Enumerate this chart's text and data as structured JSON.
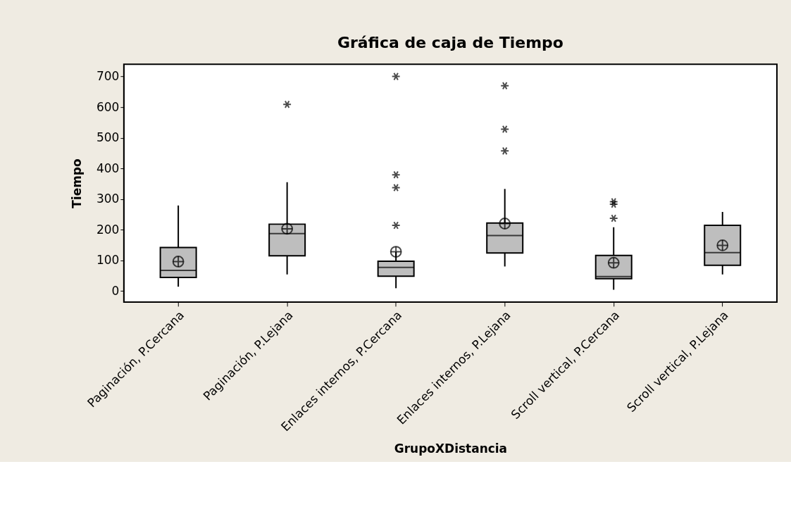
{
  "chart_data": {
    "type": "box",
    "title": "Gráfica de caja de Tiempo",
    "xlabel": "GrupoXDistancia",
    "ylabel": "Tiempo",
    "categories": [
      "Paginación, P.Cercana",
      "Paginación, P.Lejana",
      "Enlaces internos, P.Cercana",
      "Enlaces internos, P.Lejana",
      "Scroll vertical, P.Cercana",
      "Scroll vertical, P.Lejana"
    ],
    "color": "#bebebe",
    "boxes": [
      {
        "low": 14,
        "q1": 44,
        "median": 67,
        "q3": 142,
        "high": 279,
        "mean": 96
      },
      {
        "low": 54,
        "q1": 115,
        "median": 187,
        "q3": 218,
        "high": 355,
        "mean": 203,
        "outliers": [
          609
        ]
      },
      {
        "low": 9,
        "q1": 48,
        "median": 77,
        "q3": 97,
        "high": 128,
        "mean": 128,
        "outliers": [
          700,
          379,
          337,
          214
        ]
      },
      {
        "low": 80,
        "q1": 124,
        "median": 181,
        "q3": 222,
        "high": 333,
        "mean": 220,
        "outliers": [
          670,
          528,
          457
        ]
      },
      {
        "low": 4,
        "q1": 40,
        "median": 47,
        "q3": 116,
        "high": 208,
        "mean": 92,
        "outliers": [
          291,
          283,
          237
        ]
      },
      {
        "low": 54,
        "q1": 84,
        "median": 125,
        "q3": 214,
        "high": 258,
        "mean": 149
      }
    ],
    "ylim": [
      -36,
      740
    ],
    "yticks": [
      0,
      100,
      200,
      300,
      400,
      500,
      600,
      700
    ],
    "grid": false
  }
}
